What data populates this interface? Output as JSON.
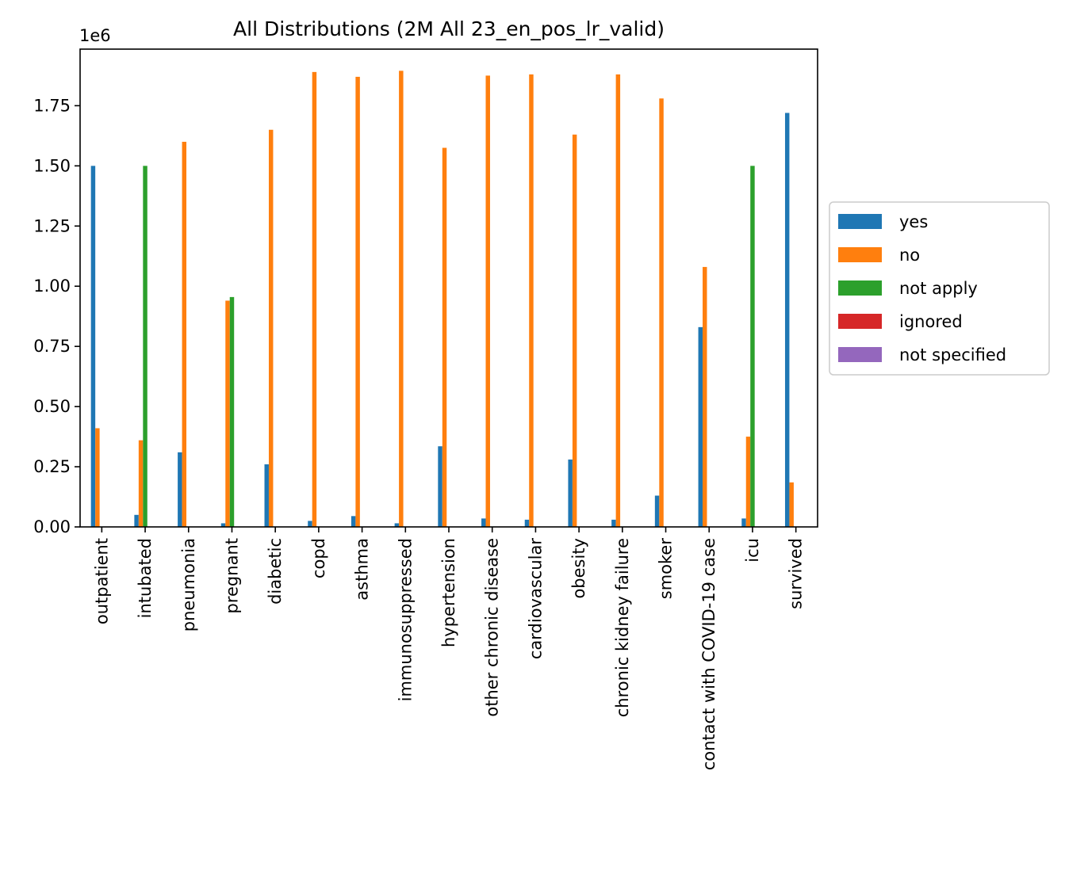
{
  "chart_data": {
    "type": "bar",
    "title": "All Distributions (2M All 23_en_pos_lr_valid)",
    "xlabel": "",
    "ylabel": "",
    "y_offset_label": "1e6",
    "ylim": [
      0,
      1.985
    ],
    "yticks": [
      0.0,
      0.25,
      0.5,
      0.75,
      1.0,
      1.25,
      1.5,
      1.75
    ],
    "ytick_labels": [
      "0.00",
      "0.25",
      "0.50",
      "0.75",
      "1.00",
      "1.25",
      "1.50",
      "1.75"
    ],
    "grid": false,
    "legend_position": "right",
    "categories": [
      "outpatient",
      "intubated",
      "pneumonia",
      "pregnant",
      "diabetic",
      "copd",
      "asthma",
      "immunosuppressed",
      "hypertension",
      "other chronic disease",
      "cardiovascular",
      "obesity",
      "chronic kidney failure",
      "smoker",
      "contact with COVID-19 case",
      "icu",
      "survived"
    ],
    "series": [
      {
        "name": "yes",
        "color": "#1f77b4",
        "values": [
          1.5,
          0.05,
          0.31,
          0.015,
          0.26,
          0.025,
          0.045,
          0.015,
          0.335,
          0.035,
          0.03,
          0.28,
          0.03,
          0.13,
          0.83,
          0.035,
          1.72
        ]
      },
      {
        "name": "no",
        "color": "#ff7f0e",
        "values": [
          0.41,
          0.36,
          1.6,
          0.94,
          1.65,
          1.89,
          1.87,
          1.895,
          1.575,
          1.875,
          1.88,
          1.63,
          1.88,
          1.78,
          1.08,
          0.375,
          0.185
        ]
      },
      {
        "name": "not apply",
        "color": "#2ca02c",
        "values": [
          0,
          1.5,
          0,
          0.955,
          0,
          0,
          0,
          0,
          0,
          0,
          0,
          0,
          0,
          0,
          0,
          1.5,
          0
        ]
      },
      {
        "name": "ignored",
        "color": "#d62728",
        "values": [
          0,
          0,
          0,
          0,
          0,
          0,
          0,
          0,
          0,
          0,
          0,
          0,
          0,
          0,
          0,
          0,
          0
        ]
      },
      {
        "name": "not specified",
        "color": "#9467bd",
        "values": [
          0,
          0,
          0,
          0,
          0,
          0,
          0,
          0,
          0,
          0,
          0,
          0,
          0,
          0,
          0,
          0,
          0
        ]
      }
    ]
  }
}
